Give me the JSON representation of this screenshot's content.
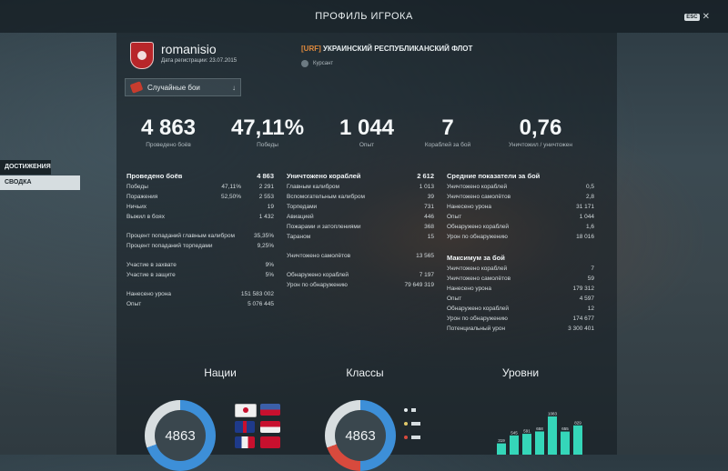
{
  "header": {
    "title": "ПРОФИЛЬ ИГРОКА",
    "esc_key": "ESC",
    "close_glyph": "✕"
  },
  "player": {
    "name": "romanisio",
    "registration": "Дата регистрации: 23.07.2015",
    "emblem_color": "#b8262a"
  },
  "clan": {
    "tag": "[URF]",
    "name": "УКРАИНСКИЙ РЕСПУБЛИКАНСКИЙ ФЛОТ",
    "rank": "Курсант"
  },
  "mode": {
    "label": "Случайные бои",
    "chevron": "↓"
  },
  "big_stats": [
    {
      "value": "4 863",
      "caption": "Проведено боёв"
    },
    {
      "value": "47,11%",
      "caption": "Победы"
    },
    {
      "value": "1 044",
      "caption": "Опыт"
    },
    {
      "value": "7",
      "caption": "Кораблей за бой"
    },
    {
      "value": "0,76",
      "caption": "Уничтожил / уничтожен"
    }
  ],
  "sidebar": {
    "items": [
      {
        "label": "ДОСТИЖЕНИЯ"
      },
      {
        "label": "СВОДКА"
      }
    ]
  },
  "col1": {
    "title": "Проведено боёв",
    "title_value": "4 863",
    "rows": [
      {
        "label": "Победы",
        "pct": "47,11%",
        "value": "2 291"
      },
      {
        "label": "Поражения",
        "pct": "52,50%",
        "value": "2 553"
      },
      {
        "label": "Ничьих",
        "pct": "",
        "value": "19"
      },
      {
        "label": "Выжил в боях",
        "pct": "",
        "value": "1 432"
      }
    ],
    "rows2": [
      {
        "label": "Процент попаданий главным калибром",
        "value": "35,35%"
      },
      {
        "label": "Процент попаданий торпедами",
        "value": "9,25%"
      }
    ],
    "rows3": [
      {
        "label": "Участие в захвате",
        "value": "9%"
      },
      {
        "label": "Участие в защите",
        "value": "5%"
      }
    ],
    "rows4": [
      {
        "label": "Нанесено урона",
        "value": "151 583 002"
      },
      {
        "label": "Опыт",
        "value": "5 076 445"
      }
    ]
  },
  "col2": {
    "title": "Уничтожено кораблей",
    "title_value": "2 612",
    "rows": [
      {
        "label": "Главным калибром",
        "value": "1 013"
      },
      {
        "label": "Вспомогательным калибром",
        "value": "39"
      },
      {
        "label": "Торпедами",
        "value": "731"
      },
      {
        "label": "Авиацией",
        "value": "446"
      },
      {
        "label": "Пожарами и затоплениями",
        "value": "368"
      },
      {
        "label": "Тараном",
        "value": "15"
      }
    ],
    "rows2": [
      {
        "label": "Уничтожено самолётов",
        "value": "13 565"
      }
    ],
    "rows3": [
      {
        "label": "Обнаружено кораблей",
        "value": "7 197"
      },
      {
        "label": "Урон по обнаружению",
        "value": "79 649 319"
      }
    ]
  },
  "col3": {
    "title": "Средние показатели за бой",
    "rows": [
      {
        "label": "Уничтожено кораблей",
        "value": "0,5"
      },
      {
        "label": "Уничтожено самолётов",
        "value": "2,8"
      },
      {
        "label": "Нанесено урона",
        "value": "31 171"
      },
      {
        "label": "Опыт",
        "value": "1 044"
      },
      {
        "label": "Обнаружено кораблей",
        "value": "1,6"
      },
      {
        "label": "Урон по обнаружению",
        "value": "18 016"
      }
    ],
    "title2": "Максимум за бой",
    "rows2": [
      {
        "label": "Уничтожено кораблей",
        "value": "7"
      },
      {
        "label": "Уничтожено самолётов",
        "value": "59"
      },
      {
        "label": "Нанесено урона",
        "value": "179 312"
      },
      {
        "label": "Опыт",
        "value": "4 597"
      },
      {
        "label": "Обнаружено кораблей",
        "value": "12"
      },
      {
        "label": "Урон по обнаружению",
        "value": "174 677"
      },
      {
        "label": "Потенциальный урон",
        "value": "3 300 401"
      }
    ]
  },
  "bottom": {
    "nations": {
      "title": "Нации",
      "total": "4863"
    },
    "classes": {
      "title": "Классы",
      "total": "4863"
    },
    "tiers": {
      "title": "Уровни"
    }
  },
  "tier_bars": [
    {
      "label": "319",
      "value": 319
    },
    {
      "label": "545",
      "value": 545
    },
    {
      "label": "591",
      "value": 591
    },
    {
      "label": "658",
      "value": 658
    },
    {
      "label": "1083",
      "value": 1083
    },
    {
      "label": "655",
      "value": 655
    },
    {
      "label": "829",
      "value": 829
    }
  ],
  "colors": {
    "accent_teal": "#35d6b9",
    "donut_blue": "#3d8fd8",
    "donut_red": "#d84a3d",
    "clan_tag": "#e08a3c"
  }
}
